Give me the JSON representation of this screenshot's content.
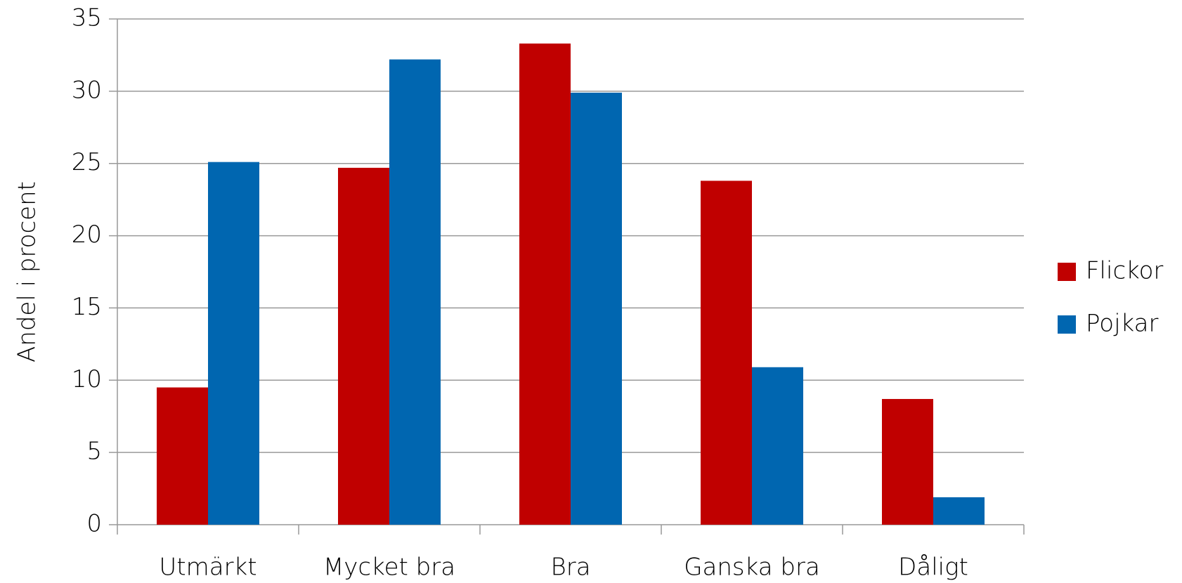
{
  "chart_data": {
    "type": "bar",
    "y_label": "Andel i procent",
    "categories": [
      "Utmärkt",
      "Mycket bra",
      "Bra",
      "Ganska bra",
      "Dåligt"
    ],
    "series": [
      {
        "name": "Flickor",
        "color": "#c00000",
        "values": [
          9.5,
          24.7,
          33.3,
          23.8,
          8.7
        ]
      },
      {
        "name": "Pojkar",
        "color": "#0066b0",
        "values": [
          25.1,
          32.2,
          29.9,
          10.9,
          1.9
        ]
      }
    ],
    "ylim": [
      0,
      35
    ],
    "yticks": [
      0,
      5,
      10,
      15,
      20,
      25,
      30,
      35
    ],
    "grid": true,
    "legend": "right"
  }
}
